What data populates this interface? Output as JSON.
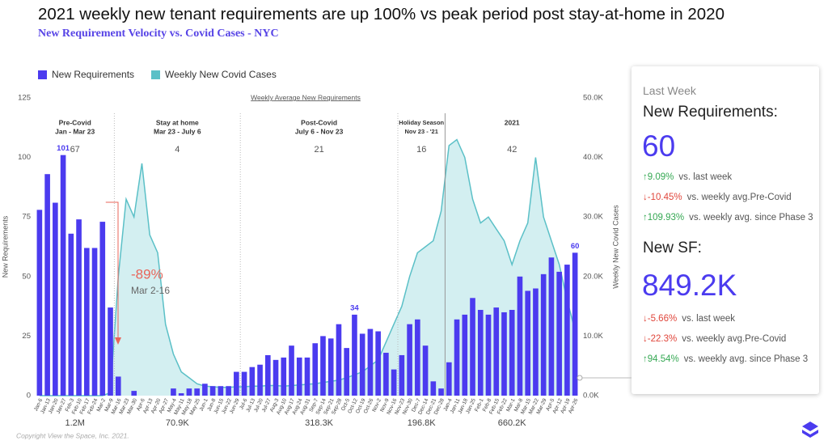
{
  "chart_data": {
    "type": "bar",
    "title": "2021 weekly new tenant requirements are up 100% vs peak period post stay-at-home in 2020",
    "subtitle": "New Requirement Velocity vs. Covid Cases - NYC",
    "axis_caption": "Weekly Average New Requirements",
    "ylabel": "New Requirements",
    "y2label": "Weekly New Covid Cases",
    "categories": [
      "Jan-6",
      "Jan-13",
      "Jan-20",
      "Jan-27",
      "Feb-3",
      "Feb-10",
      "Feb-17",
      "Feb-24",
      "Mar-2",
      "Mar-9",
      "Mar-16",
      "Mar-23",
      "Mar-30",
      "Apr-6",
      "Apr-13",
      "Apr-20",
      "Apr-27",
      "May-4",
      "May-11",
      "May-18",
      "May-25",
      "Jun-1",
      "Jun-8",
      "Jun-15",
      "Jun-22",
      "Jun-29",
      "Jul-6",
      "Jul-13",
      "Jul-20",
      "Jul-27",
      "Aug-3",
      "Aug-10",
      "Aug-17",
      "Aug-24",
      "Aug-31",
      "Sep-7",
      "Sep-14",
      "Sep-21",
      "Sep-28",
      "Oct-5",
      "Oct-12",
      "Oct-19",
      "Oct-26",
      "Nov-2",
      "Nov-9",
      "Nov-16",
      "Nov-23",
      "Nov-30",
      "Dec-7",
      "Dec-14",
      "Dec-21",
      "Dec-28",
      "Jan-4",
      "Jan-11",
      "Jan-18",
      "Jan-25",
      "Feb-1",
      "Feb-8",
      "Feb-15",
      "Feb-22",
      "Mar-1",
      "Mar-8",
      "Mar-15",
      "Mar-22",
      "Mar-29",
      "Apr-5",
      "Apr-12",
      "Apr-19",
      "Apr-26"
    ],
    "series": [
      {
        "name": "New Requirements",
        "color": "#4b3bef",
        "values": [
          78,
          93,
          81,
          101,
          68,
          74,
          62,
          62,
          73,
          37,
          8,
          0,
          2,
          0,
          0,
          0,
          0,
          3,
          1,
          3,
          3,
          5,
          4,
          4,
          4,
          10,
          10,
          12,
          13,
          17,
          15,
          16,
          21,
          16,
          16,
          22,
          25,
          24,
          30,
          20,
          34,
          26,
          28,
          27,
          18,
          11,
          17,
          30,
          32,
          21,
          6,
          3,
          14,
          32,
          34,
          41,
          36,
          34,
          37,
          35,
          36,
          50,
          44,
          45,
          51,
          58,
          52,
          55,
          60
        ]
      },
      {
        "name": "Weekly New Covid Cases",
        "color": "#5bc0c7",
        "fill": "#d3eff1",
        "axis": "y2",
        "values": [
          0,
          0,
          0,
          0,
          0,
          0,
          0,
          0,
          0,
          500,
          20000,
          33000,
          30000,
          39000,
          27000,
          24000,
          12000,
          7000,
          4000,
          3000,
          2000,
          1600,
          1500,
          1400,
          1400,
          1500,
          1500,
          1600,
          1600,
          1700,
          1700,
          1600,
          1700,
          1800,
          1900,
          2000,
          2200,
          2400,
          2600,
          3000,
          3500,
          4000,
          5000,
          6000,
          9000,
          12000,
          15000,
          20000,
          24000,
          25000,
          26000,
          31000,
          42000,
          43000,
          40000,
          33000,
          29000,
          30000,
          28000,
          26000,
          22000,
          26000,
          29000,
          40000,
          30000,
          26000,
          22000,
          16000,
          11000
        ]
      }
    ],
    "ylim": [
      0,
      125
    ],
    "yticks": [
      0,
      25,
      50,
      75,
      100,
      125
    ],
    "y2lim": [
      0,
      50000
    ],
    "y2ticks": [
      {
        "value": 0,
        "label": "0.0K"
      },
      {
        "value": 10000,
        "label": "10.0K"
      },
      {
        "value": 20000,
        "label": "20.0K"
      },
      {
        "value": 30000,
        "label": "30.0K"
      },
      {
        "value": 40000,
        "label": "40.0K"
      },
      {
        "value": 50000,
        "label": "50.0K"
      }
    ],
    "periods": [
      {
        "name": "Pre-Covid",
        "dates": "Jan - Mar 23",
        "average": 67,
        "total": "1.2M"
      },
      {
        "name": "Stay at home",
        "dates": "Mar 23 - July 6",
        "average": 4,
        "total": "70.9K"
      },
      {
        "name": "Post-Covid",
        "dates": "July 6 - Nov 23",
        "average": 21,
        "total": "318.3K"
      },
      {
        "name": "Holiday Season",
        "dates": "Nov 23 - '21",
        "average": 16,
        "total": "196.8K"
      },
      {
        "name": "2021",
        "dates": "",
        "average": 42,
        "total": "660.2K"
      }
    ],
    "annotation": {
      "change": "-89%",
      "period": "Mar 2-16"
    },
    "copyright": "Copyright View the Space, Inc. 2021."
  },
  "panel": {
    "heading": "Last Week",
    "requirements": {
      "label": "New Requirements:",
      "value": "60",
      "stats": [
        {
          "change": "↑9.09%",
          "text": "vs. last week",
          "color": "#35a853"
        },
        {
          "change": "↓-10.45%",
          "text": "vs. weekly avg.Pre-Covid",
          "color": "#e0463b"
        },
        {
          "change": "↑109.93%",
          "text": "vs. weekly avg. since Phase 3",
          "color": "#35a853"
        }
      ]
    },
    "sf": {
      "label": "New SF:",
      "value": "849.2K",
      "stats": [
        {
          "change": "↓-5.66%",
          "text": "vs. last week",
          "color": "#e0463b"
        },
        {
          "change": "↓-22.3%",
          "text": "vs. weekly avg.Pre-Covid",
          "color": "#e0463b"
        },
        {
          "change": "↑94.54%",
          "text": "vs. weekly avg. since Phase 3",
          "color": "#35a853"
        }
      ]
    }
  }
}
